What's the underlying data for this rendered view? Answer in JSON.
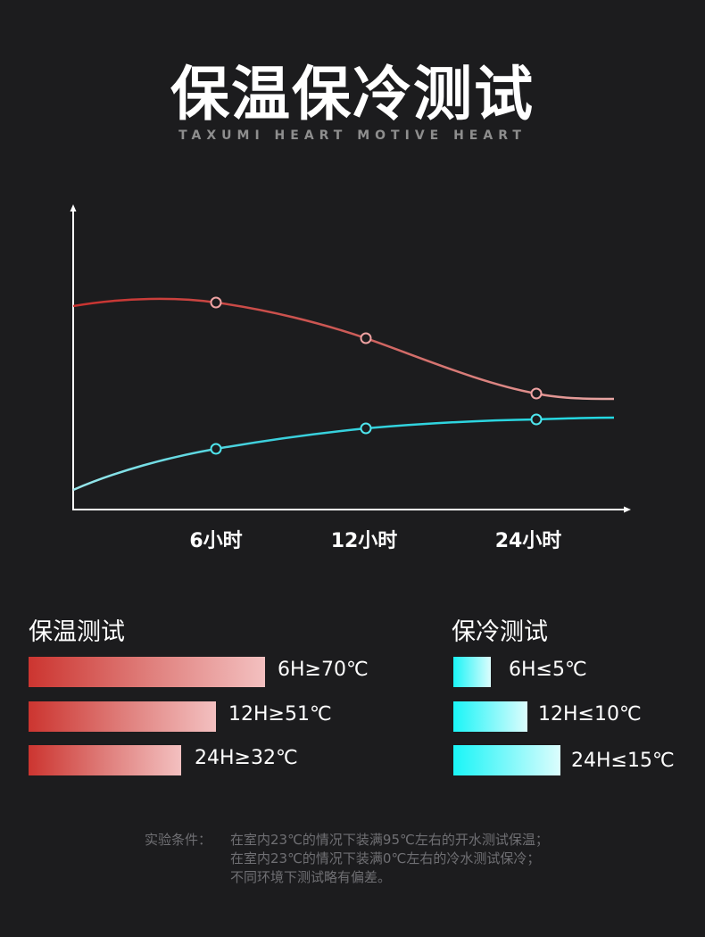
{
  "header": {
    "title": "保温保冷测试",
    "subtitle": "TAXUMI HEART MOTIVE HEART"
  },
  "chart_data": {
    "type": "line",
    "x": [
      "6小时",
      "12小时",
      "24小时"
    ],
    "series": [
      {
        "values": [
          70,
          51,
          32
        ],
        "color": "#d6524d"
      },
      {
        "values": [
          5,
          10,
          15
        ],
        "color": "#33d6e0"
      }
    ]
  },
  "warm": {
    "title": "保温测试",
    "items": [
      {
        "label": "6H≥70℃",
        "value": 70
      },
      {
        "label": "12H≥51℃",
        "value": 51
      },
      {
        "label": "24H≥32℃",
        "value": 32
      }
    ]
  },
  "cold": {
    "title": "保冷测试",
    "items": [
      {
        "label": "6H≤5℃",
        "value": 5
      },
      {
        "label": "12H≤10℃",
        "value": 10
      },
      {
        "label": "24H≤15℃",
        "value": 15
      }
    ]
  },
  "note": {
    "head": "实验条件：",
    "lines": [
      "在室内23℃的情况下装满95℃左右的开水测试保温；",
      "在室内23℃的情况下装满0℃左右的冷水测试保冷；",
      "不同环境下测试略有偏差。"
    ]
  },
  "colors": {
    "background": "#1c1c1e",
    "warm": "#cc3530",
    "cold": "#1af5f7"
  }
}
